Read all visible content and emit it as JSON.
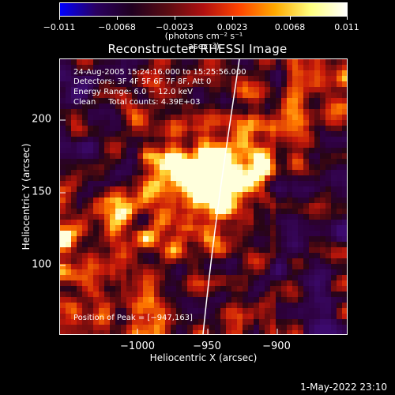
{
  "colorbar": {
    "colors": [
      "#0000ff",
      "#2a0060",
      "#200020",
      "#5a0c12",
      "#b01010",
      "#ff4400",
      "#ffaa00",
      "#ffff80",
      "#ffffff"
    ],
    "ticks": [
      "−0.011",
      "−0.0068",
      "−0.0023",
      "0.0023",
      "0.0068",
      "0.011"
    ],
    "units": "(photons cm⁻² s⁻¹ asec⁻²)"
  },
  "title": "Reconstructed RHESSI Image",
  "info": {
    "time": "24-Aug-2005 15:24:16.000 to 15:25:56.000",
    "detectors": "Detectors: 3F 4F 5F 6F 7F 8F, Att 0",
    "energy": "Energy Range: 6.0 − 12.0 keV",
    "clean": "Clean     Total counts: 4.39E+03",
    "peak": "Position of Peak = [−947,163]"
  },
  "axes": {
    "x_title": "Heliocentric X (arcsec)",
    "y_title": "Heliocentric Y (arcsec)",
    "x_ticks": [
      "−1000",
      "−950",
      "−900"
    ],
    "y_ticks": [
      "200",
      "150",
      "100"
    ]
  },
  "timestamp": "1-May-2022 23:10"
}
